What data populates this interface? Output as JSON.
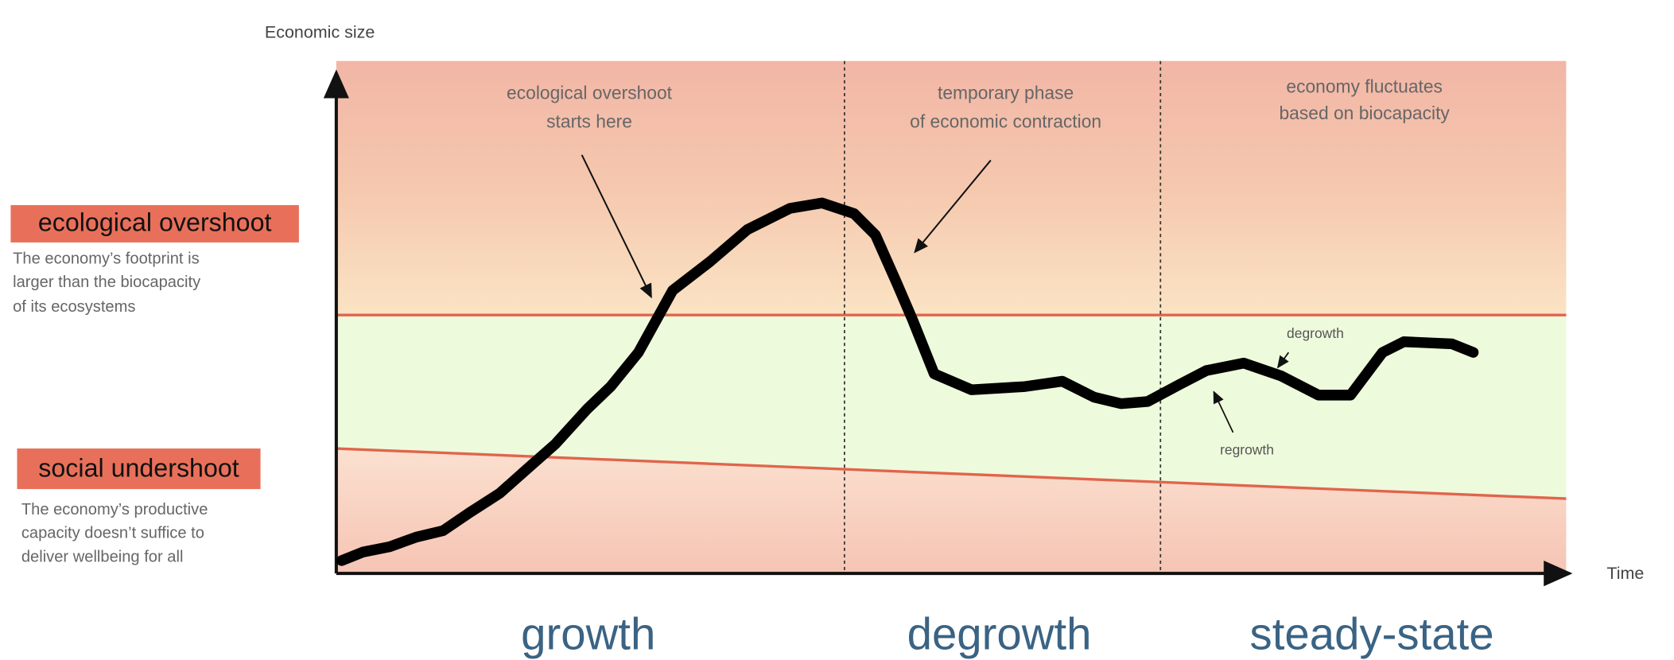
{
  "axis": {
    "y_label": "Economic size",
    "x_label": "Time"
  },
  "left": {
    "overshoot": {
      "title": "ecological overshoot",
      "lines": [
        "The economy’s footprint is",
        "larger than the biocapacity",
        "of its ecosystems"
      ]
    },
    "undershoot": {
      "title": "social undershoot",
      "lines": [
        "The economy’s productive",
        "capacity doesn’t suffice to",
        "deliver wellbeing for all"
      ]
    }
  },
  "annotations": [
    [
      "ecological overshoot",
      "starts here"
    ],
    [
      "temporary phase",
      "of economic contraction"
    ],
    [
      "economy fluctuates",
      "based on biocapacity"
    ]
  ],
  "curve_labels": {
    "down": "degrowth",
    "up": "regrowth"
  },
  "phases": [
    "growth",
    "degrowth",
    "steady-state"
  ]
}
